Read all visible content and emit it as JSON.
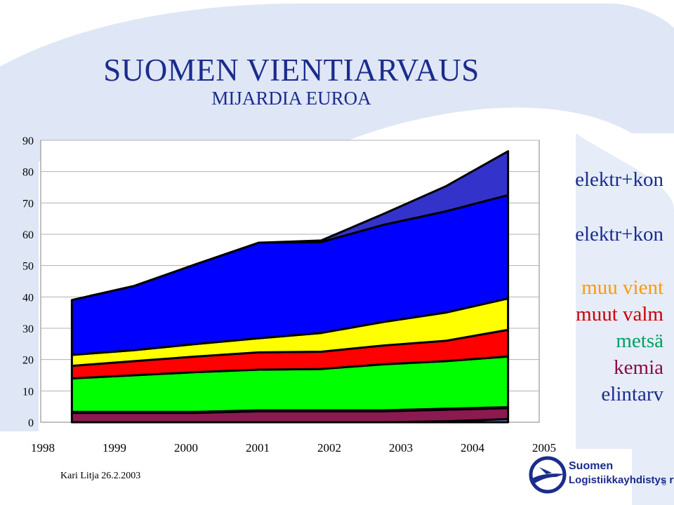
{
  "slide": {
    "title": "SUOMEN VIENTIARVAUS",
    "subtitle": "MIJARDIA EUROA",
    "footer_author": "Kari Litja 26.2.2003",
    "page_number": "6",
    "logo_line1": "Suomen",
    "logo_line2": "Logistiikkayhdistys ry"
  },
  "colors": {
    "background_shape": "#dfe6f6",
    "title": "#1a2c8c"
  },
  "chart_data": {
    "type": "area",
    "stacked": true,
    "categories": [
      "1998",
      "1999",
      "2000",
      "2001",
      "2002",
      "2003",
      "2004",
      "2005"
    ],
    "ylim": [
      0,
      90
    ],
    "yticks": [
      "0",
      "10",
      "20",
      "30",
      "40",
      "50",
      "60",
      "70",
      "80",
      "90"
    ],
    "grid": true,
    "legend_position": "right",
    "series": [
      {
        "name": "",
        "color": "#7c8ce0",
        "values": [
          0,
          0,
          0,
          0,
          0,
          0,
          0.3,
          1
        ]
      },
      {
        "name": "elintarv",
        "color": "#8b1a50",
        "values": [
          3,
          3,
          3,
          3.5,
          3.5,
          3.5,
          3.7,
          3.5
        ]
      },
      {
        "name": "kemia",
        "color": "#ffffff",
        "values": [
          0.3,
          0.3,
          0.3,
          0.3,
          0.3,
          0.3,
          0.3,
          0.3
        ]
      },
      {
        "name": "metsä",
        "color": "#00ff00",
        "values": [
          10.7,
          11.7,
          12.7,
          13,
          13.2,
          14.7,
          15.2,
          16.2
        ]
      },
      {
        "name": "muut valm",
        "color": "#ff0000",
        "values": [
          4,
          4.5,
          5,
          5.5,
          5.5,
          6,
          6.5,
          8.5
        ]
      },
      {
        "name": "muu vient",
        "color": "#ffff00",
        "values": [
          3.5,
          3.5,
          4,
          4.5,
          6,
          7.5,
          9,
          10
        ]
      },
      {
        "name": "elektr+kon",
        "color": "#0000ff",
        "values": [
          17.5,
          20.5,
          25.5,
          30.5,
          29,
          31,
          32.3,
          33
        ]
      },
      {
        "name": "elektr+kon",
        "color": "#3333cc",
        "values": [
          0,
          0,
          0,
          0,
          0.5,
          3.5,
          8,
          14
        ]
      }
    ]
  },
  "legend": [
    {
      "label": "elektr+kon",
      "color": "#1a2c8c"
    },
    {
      "label": "elektr+kon",
      "color": "#1a2c8c"
    },
    {
      "label": "muu vient",
      "color": "#ff9900"
    },
    {
      "label": "muut valm",
      "color": "#cc0000"
    },
    {
      "label": "metsä",
      "color": "#00a060"
    },
    {
      "label": "kemia",
      "color": "#8b0a40"
    },
    {
      "label": "elintarv",
      "color": "#1a2c8c"
    }
  ]
}
